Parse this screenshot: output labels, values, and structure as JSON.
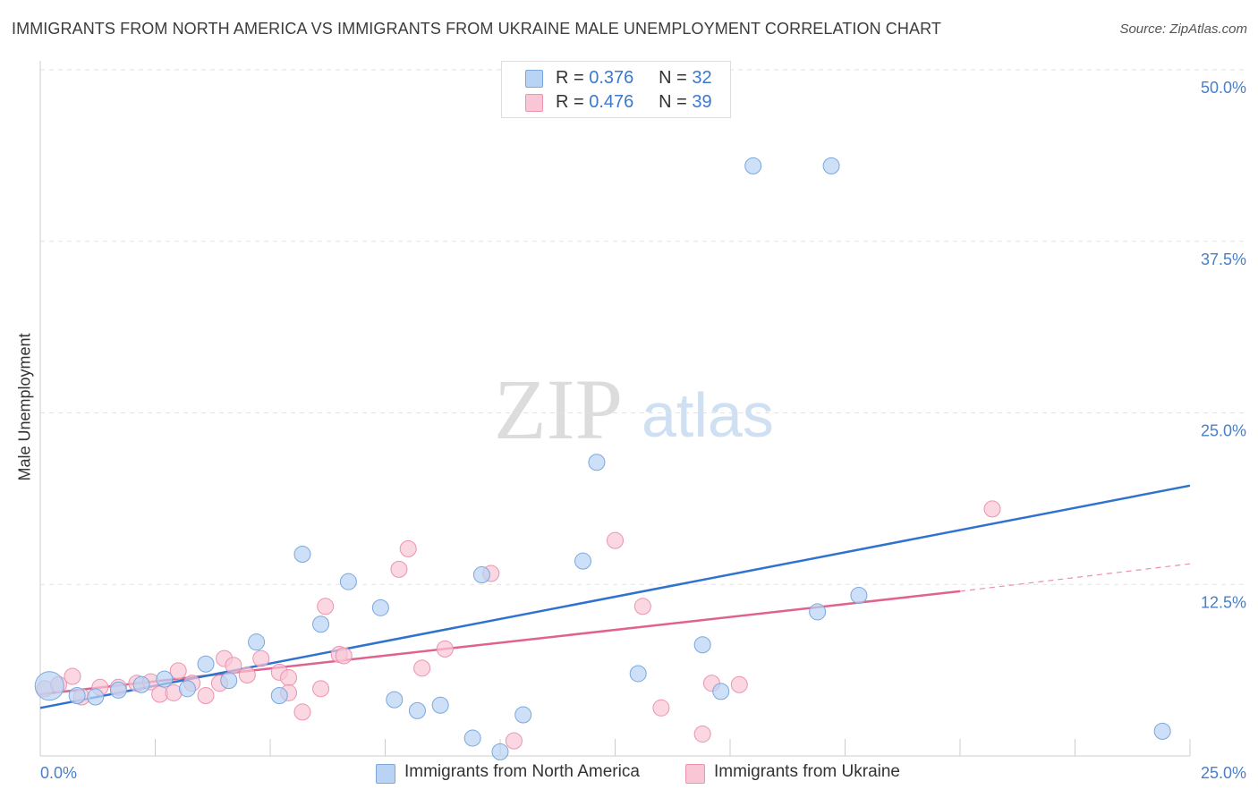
{
  "title": "IMMIGRANTS FROM NORTH AMERICA VS IMMIGRANTS FROM UKRAINE MALE UNEMPLOYMENT CORRELATION CHART",
  "source": "Source: ZipAtlas.com",
  "watermark": {
    "zip": "ZIP",
    "atlas": "atlas"
  },
  "legend": {
    "rows": [
      {
        "r_label": "R = ",
        "r_value": "0.376",
        "n_label": "N = ",
        "n_value": "32"
      },
      {
        "r_label": "R = ",
        "r_value": "0.476",
        "n_label": "N = ",
        "n_value": "39"
      }
    ]
  },
  "bottom_legend": [
    "Immigrants from North America",
    "Immigrants from Ukraine"
  ],
  "colors": {
    "north_america_fill": "#b8d3f4",
    "north_america_stroke": "#7aa8dc",
    "north_america_line": "#2f72d0",
    "ukraine_fill": "#f9c6d5",
    "ukraine_stroke": "#ec93b0",
    "ukraine_line": "#e0628e",
    "grid": "#e2e2e2",
    "axis_text": "#4a7fc8"
  },
  "chart_data": {
    "type": "scatter",
    "title": "IMMIGRANTS FROM NORTH AMERICA VS IMMIGRANTS FROM UKRAINE MALE UNEMPLOYMENT CORRELATION CHART",
    "xlabel": "",
    "ylabel": "Male Unemployment",
    "xlim": [
      0,
      25
    ],
    "ylim": [
      0,
      50
    ],
    "x_tick_labels": [
      "0.0%",
      "25.0%"
    ],
    "y_ticks": [
      12.5,
      25.0,
      37.5,
      50.0
    ],
    "y_tick_labels": [
      "12.5%",
      "25.0%",
      "37.5%",
      "50.0%"
    ],
    "grid": "horizontal dashed",
    "legend_placement": "top-center",
    "series": [
      {
        "name": "Immigrants from North America",
        "r": 0.376,
        "n": 32,
        "trend": {
          "x": [
            0.0,
            25.0
          ],
          "y": [
            3.5,
            19.7
          ]
        },
        "points": [
          {
            "x": 0.2,
            "y": 5.1,
            "big": true
          },
          {
            "x": 1.2,
            "y": 4.3
          },
          {
            "x": 1.7,
            "y": 4.8
          },
          {
            "x": 2.2,
            "y": 5.2
          },
          {
            "x": 2.7,
            "y": 5.6
          },
          {
            "x": 3.2,
            "y": 4.9
          },
          {
            "x": 3.6,
            "y": 6.7
          },
          {
            "x": 4.1,
            "y": 5.5
          },
          {
            "x": 4.7,
            "y": 8.3
          },
          {
            "x": 5.2,
            "y": 4.4
          },
          {
            "x": 5.7,
            "y": 14.7
          },
          {
            "x": 6.1,
            "y": 9.6
          },
          {
            "x": 6.7,
            "y": 12.7
          },
          {
            "x": 7.4,
            "y": 10.8
          },
          {
            "x": 7.7,
            "y": 4.1
          },
          {
            "x": 8.2,
            "y": 3.3
          },
          {
            "x": 8.7,
            "y": 3.7
          },
          {
            "x": 9.4,
            "y": 1.3
          },
          {
            "x": 9.6,
            "y": 13.2
          },
          {
            "x": 10.0,
            "y": 0.3
          },
          {
            "x": 10.5,
            "y": 3.0
          },
          {
            "x": 11.8,
            "y": 14.2
          },
          {
            "x": 12.1,
            "y": 21.4
          },
          {
            "x": 13.0,
            "y": 6.0
          },
          {
            "x": 14.4,
            "y": 8.1
          },
          {
            "x": 14.8,
            "y": 4.7
          },
          {
            "x": 15.5,
            "y": 43.0
          },
          {
            "x": 17.2,
            "y": 43.0
          },
          {
            "x": 16.9,
            "y": 10.5
          },
          {
            "x": 17.8,
            "y": 11.7
          },
          {
            "x": 24.4,
            "y": 1.8
          },
          {
            "x": 0.8,
            "y": 4.4
          }
        ]
      },
      {
        "name": "Immigrants from Ukraine",
        "r": 0.476,
        "n": 39,
        "trend": {
          "x": [
            0.0,
            20.0
          ],
          "y": [
            4.5,
            12.0
          ]
        },
        "trend_dashed": {
          "x": [
            20.0,
            25.0
          ],
          "y": [
            12.0,
            14.0
          ]
        },
        "points": [
          {
            "x": 0.1,
            "y": 4.9
          },
          {
            "x": 0.4,
            "y": 5.2
          },
          {
            "x": 0.7,
            "y": 5.8
          },
          {
            "x": 0.9,
            "y": 4.3
          },
          {
            "x": 1.3,
            "y": 5.0
          },
          {
            "x": 1.7,
            "y": 5.0
          },
          {
            "x": 2.1,
            "y": 5.3
          },
          {
            "x": 2.4,
            "y": 5.4
          },
          {
            "x": 2.6,
            "y": 4.5
          },
          {
            "x": 2.9,
            "y": 4.6
          },
          {
            "x": 3.0,
            "y": 6.2
          },
          {
            "x": 3.3,
            "y": 5.3
          },
          {
            "x": 3.6,
            "y": 4.4
          },
          {
            "x": 3.9,
            "y": 5.3
          },
          {
            "x": 4.0,
            "y": 7.1
          },
          {
            "x": 4.2,
            "y": 6.6
          },
          {
            "x": 4.5,
            "y": 5.9
          },
          {
            "x": 4.8,
            "y": 7.1
          },
          {
            "x": 5.2,
            "y": 6.1
          },
          {
            "x": 5.4,
            "y": 5.7
          },
          {
            "x": 5.4,
            "y": 4.6
          },
          {
            "x": 5.7,
            "y": 3.2
          },
          {
            "x": 6.1,
            "y": 4.9
          },
          {
            "x": 6.2,
            "y": 10.9
          },
          {
            "x": 6.5,
            "y": 7.4
          },
          {
            "x": 6.6,
            "y": 7.3
          },
          {
            "x": 7.8,
            "y": 13.6
          },
          {
            "x": 8.0,
            "y": 15.1
          },
          {
            "x": 8.3,
            "y": 6.4
          },
          {
            "x": 8.8,
            "y": 7.8
          },
          {
            "x": 9.8,
            "y": 13.3
          },
          {
            "x": 10.3,
            "y": 1.1
          },
          {
            "x": 12.5,
            "y": 15.7
          },
          {
            "x": 13.1,
            "y": 10.9
          },
          {
            "x": 14.4,
            "y": 1.6
          },
          {
            "x": 14.6,
            "y": 5.3
          },
          {
            "x": 15.2,
            "y": 5.2
          },
          {
            "x": 20.7,
            "y": 18.0
          },
          {
            "x": 13.5,
            "y": 3.5
          }
        ]
      }
    ]
  }
}
